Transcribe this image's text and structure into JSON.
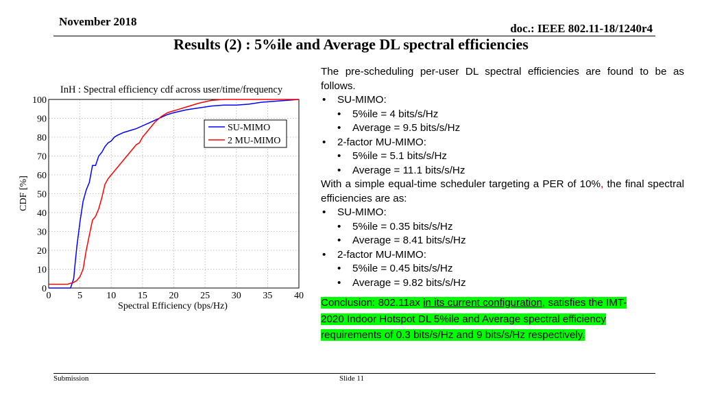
{
  "header": {
    "date": "November 2018",
    "doc": "doc.: IEEE 802.11-18/1240r4",
    "title": "Results (2) : 5%ile and Average DL spectral efficiencies"
  },
  "body": {
    "intro": "The pre-scheduling per-user DL spectral efficiencies are found to be as follows.",
    "su1": "SU-MIMO:",
    "su1_5": "5%ile  = 4 bits/s/Hz",
    "su1_avg": "Average = 9.5 bits/s/Hz",
    "mu1": "2-factor MU-MIMO:",
    "mu1_5": "5%ile = 5.1 bits/s/Hz",
    "mu1_avg": "Average  = 11.1 bits/s/Hz",
    "sched_a": "With a simple equal-time scheduler targeting a PER of 10%",
    "sched_comma": ",",
    "sched_b": " the final spectral efficiencies are as:",
    "su2": "SU-MIMO:",
    "su2_5": "5%ile  = 0.35 bits/s/Hz",
    "su2_avg": "Average = 8.41 bits/s/Hz",
    "mu2": "2-factor MU-MIMO:",
    "mu2_5": "5%ile = 0.45 bits/s/Hz",
    "mu2_avg": "Average  = 9.82 bits/s/Hz"
  },
  "conclusion": {
    "line1_a": "Conclusion: 802.11ax ",
    "line1_u": "in its current configuration",
    "line1_b": ", satisfies the IMT-",
    "line2": "2020 Indoor Hotspot DL 5%ile and Average spectral efficiency",
    "line3": "requirements of 0.3 bits/s/Hz and 9  bits/s/Hz respectively."
  },
  "footer": {
    "left": "Submission",
    "slide": "Slide 11"
  },
  "colors": {
    "su": "#0000ff",
    "mu": "#ff0000",
    "highlight": "#00ff00"
  },
  "chart_data": {
    "type": "line",
    "title": "InH : Spectral efficiency cdf across user/time/frequency",
    "xlabel": "Spectral Efficiency (bps/Hz)",
    "ylabel": "CDF [%]",
    "xlim": [
      0,
      40
    ],
    "ylim": [
      0,
      100
    ],
    "xticks": [
      0,
      5,
      10,
      15,
      20,
      25,
      30,
      35,
      40
    ],
    "yticks": [
      0,
      10,
      20,
      30,
      40,
      50,
      60,
      70,
      80,
      90,
      100
    ],
    "grid": true,
    "legend": "upper-right",
    "series": [
      {
        "name": "SU-MIMO",
        "color": "#0000ff",
        "x": [
          0,
          3.5,
          4,
          4.2,
          4.5,
          5,
          5.5,
          6,
          6.5,
          7,
          7.5,
          8,
          8.5,
          9,
          9.5,
          10,
          10.5,
          11,
          12,
          13,
          14,
          15,
          16,
          17,
          18,
          19,
          20,
          22,
          24,
          26,
          28,
          30,
          32,
          33,
          34,
          36,
          38,
          40
        ],
        "y": [
          0,
          0,
          5,
          12,
          22,
          35,
          46,
          52,
          56,
          65,
          65,
          70,
          72,
          75,
          77,
          78,
          80,
          81,
          82.5,
          83.5,
          84.5,
          86,
          87.5,
          89,
          90.5,
          92,
          93,
          94.5,
          95.5,
          96.5,
          97,
          97,
          97.5,
          98,
          98.5,
          99,
          99.5,
          100
        ]
      },
      {
        "name": "2 MU-MIMO",
        "color": "#ff0000",
        "x": [
          0,
          3,
          4,
          4.5,
          5,
          5.5,
          6,
          6.5,
          7,
          7.5,
          8,
          8.5,
          9,
          9.5,
          10,
          10.5,
          11,
          12,
          13,
          14,
          14.5,
          15,
          16,
          17,
          18,
          19,
          20,
          21,
          22,
          24,
          26,
          28,
          30,
          35,
          40
        ],
        "y": [
          2,
          2,
          3,
          4,
          6,
          10,
          20,
          28,
          36,
          38,
          42,
          48,
          55,
          58,
          60,
          62,
          64,
          68,
          72,
          76,
          77,
          80,
          84,
          88,
          91,
          93,
          94,
          95,
          96,
          98,
          99.5,
          100,
          100,
          100,
          100
        ]
      }
    ]
  }
}
